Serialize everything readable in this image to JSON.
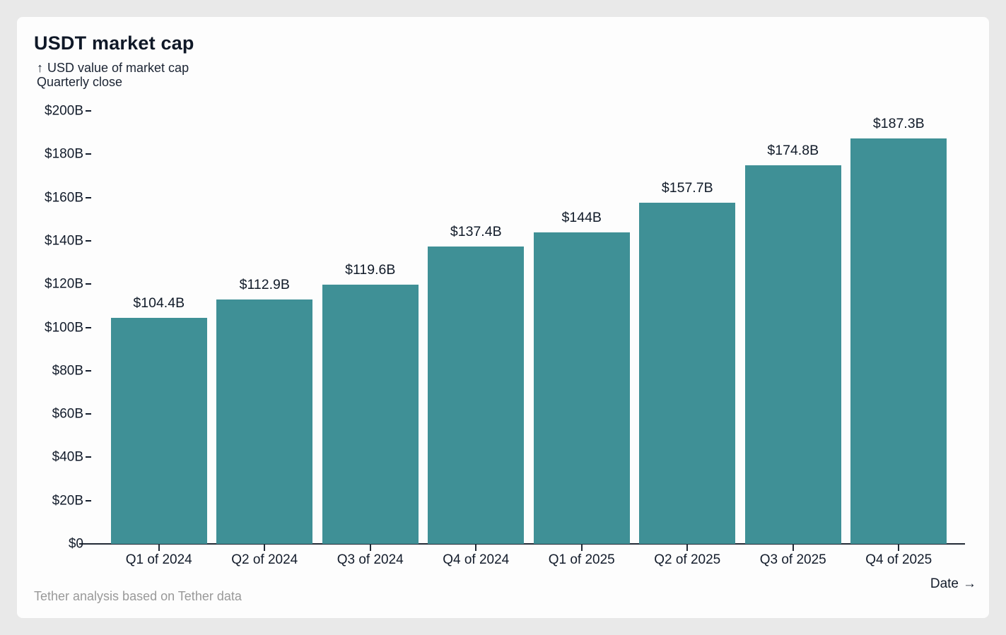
{
  "page": {
    "background_color": "#e9e9e9",
    "card_background_color": "#fdfdfd"
  },
  "header": {
    "title": "USDT market cap",
    "y_axis_arrow": "↑",
    "subtitle_line1": "USD value of market cap",
    "subtitle_line2": "Quarterly close"
  },
  "footer": {
    "source_note": "Tether analysis based on Tether data",
    "x_axis_caption": "Date",
    "right_arrow": "→"
  },
  "chart_data": {
    "type": "bar",
    "title": "USDT market cap",
    "subtitle": "USD value of market cap, quarterly close",
    "categories": [
      "Q1 of 2024",
      "Q2 of 2024",
      "Q3 of 2024",
      "Q4 of 2024",
      "Q1 of 2025",
      "Q2 of 2025",
      "Q3 of 2025",
      "Q4 of 2025"
    ],
    "values": [
      104.4,
      112.9,
      119.6,
      137.4,
      144,
      157.7,
      174.8,
      187.3
    ],
    "value_labels": [
      "$104.4B",
      "$112.9B",
      "$119.6B",
      "$137.4B",
      "$144B",
      "$157.7B",
      "$174.8B",
      "$187.3B"
    ],
    "xlabel": "Date",
    "ylabel": "USD value of market cap",
    "ylim": [
      0,
      200
    ],
    "ytick_values": [
      0,
      20,
      40,
      60,
      80,
      100,
      120,
      140,
      160,
      180,
      200
    ],
    "ytick_labels": [
      "$0",
      "$20B",
      "$40B",
      "$60B",
      "$80B",
      "$100B",
      "$120B",
      "$140B",
      "$160B",
      "$180B",
      "$200B"
    ],
    "grid": false,
    "legend": false,
    "bar_color": "#3f9096",
    "axis_color": "#222a35",
    "text_color": "#131c2b",
    "muted_text_color": "#999999"
  }
}
